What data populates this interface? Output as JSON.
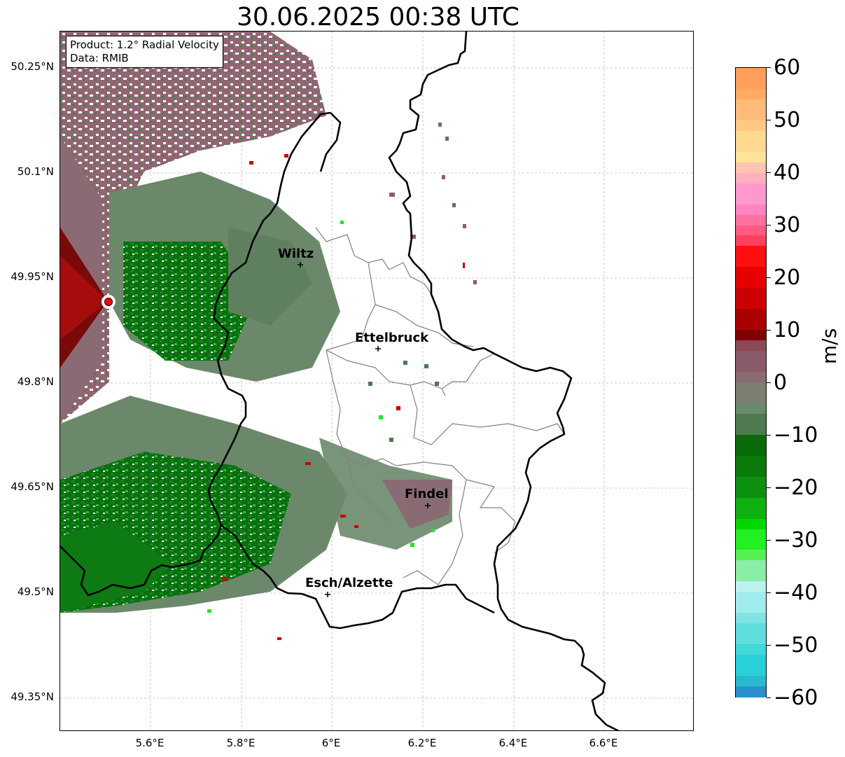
{
  "title": "30.06.2025 00:38 UTC",
  "info": {
    "product": "Product: 1.2° Radial Velocity",
    "data": "Data: RMIB"
  },
  "axes": {
    "lat_labels": [
      "50.25°N",
      "50.1°N",
      "49.95°N",
      "49.8°N",
      "49.65°N",
      "49.5°N",
      "49.35°N"
    ],
    "lon_labels": [
      "5.6°E",
      "5.8°E",
      "6°E",
      "6.2°E",
      "6.4°E",
      "6.6°E"
    ]
  },
  "cities": [
    {
      "name": "Wiltz"
    },
    {
      "name": "Ettelbruck"
    },
    {
      "name": "Findel"
    },
    {
      "name": "Esch/Alzette"
    }
  ],
  "colorbar": {
    "unit": "m/s",
    "tick_labels": [
      "60",
      "50",
      "40",
      "30",
      "20",
      "10",
      "0",
      "−10",
      "−20",
      "−30",
      "−40",
      "−50",
      "−60"
    ],
    "min": -60,
    "max": 60
  },
  "colors": {
    "approaching_dark_green": "#0a6a0a",
    "approaching_bright_green": "#22e622",
    "near_zero_grey_green": "#6b8a6b",
    "receding_mauve": "#8a5a68",
    "receding_red": "#c80000",
    "radar_site": "#ff0000"
  }
}
